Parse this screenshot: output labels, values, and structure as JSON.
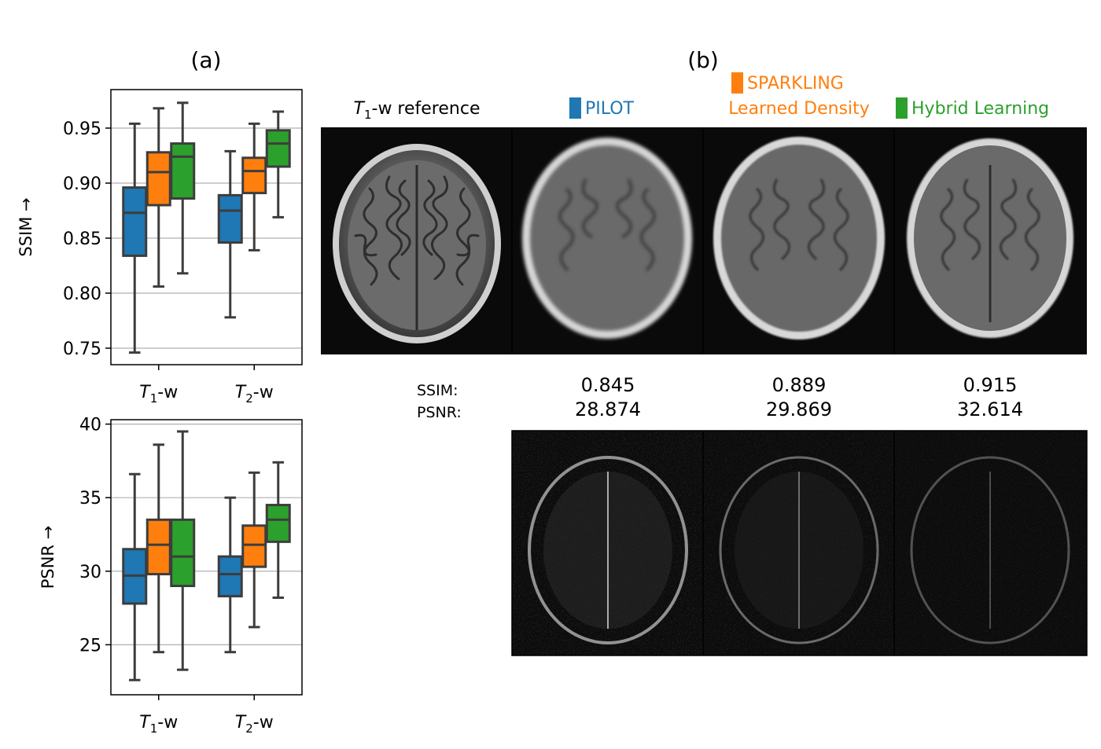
{
  "panel_labels": {
    "a": "(a)",
    "b": "(b)"
  },
  "colors": {
    "pilot": "#1f77b4",
    "sparkling": "#ff7f0e",
    "hybrid": "#2ca02c",
    "whisker": "#3d3d3d",
    "grid": "#b0b0b0"
  },
  "chart_data": [
    {
      "type": "box",
      "ylabel": "SSIM →",
      "ylim": [
        0.735,
        0.985
      ],
      "yticks": [
        "0.75",
        "0.80",
        "0.85",
        "0.90",
        "0.95"
      ],
      "ytick_values": [
        0.75,
        0.8,
        0.85,
        0.9,
        0.95
      ],
      "grid": "horizontal",
      "categories": [
        {
          "pre": "T",
          "sub": "1",
          "post": "-w"
        },
        {
          "pre": "T",
          "sub": "2",
          "post": "-w"
        }
      ],
      "series": [
        {
          "color": "#1f77b4",
          "boxes": [
            {
              "min": 0.746,
              "q1": 0.834,
              "median": 0.873,
              "q3": 0.896,
              "max": 0.954
            },
            {
              "min": 0.778,
              "q1": 0.846,
              "median": 0.875,
              "q3": 0.889,
              "max": 0.929
            }
          ]
        },
        {
          "color": "#ff7f0e",
          "boxes": [
            {
              "min": 0.806,
              "q1": 0.88,
              "median": 0.91,
              "q3": 0.928,
              "max": 0.968
            },
            {
              "min": 0.839,
              "q1": 0.891,
              "median": 0.911,
              "q3": 0.923,
              "max": 0.954
            }
          ]
        },
        {
          "color": "#2ca02c",
          "boxes": [
            {
              "min": 0.818,
              "q1": 0.886,
              "median": 0.924,
              "q3": 0.936,
              "max": 0.973
            },
            {
              "min": 0.869,
              "q1": 0.915,
              "median": 0.936,
              "q3": 0.948,
              "max": 0.965
            }
          ]
        }
      ]
    },
    {
      "type": "box",
      "ylabel": "PSNR →",
      "ylim": [
        21.6,
        40.3
      ],
      "yticks": [
        "25",
        "30",
        "35",
        "40"
      ],
      "ytick_values": [
        25,
        30,
        35,
        40
      ],
      "grid": "horizontal",
      "categories": [
        {
          "pre": "T",
          "sub": "1",
          "post": "-w"
        },
        {
          "pre": "T",
          "sub": "2",
          "post": "-w"
        }
      ],
      "series": [
        {
          "color": "#1f77b4",
          "boxes": [
            {
              "min": 22.6,
              "q1": 27.8,
              "median": 29.7,
              "q3": 31.5,
              "max": 36.6
            },
            {
              "min": 24.5,
              "q1": 28.3,
              "median": 29.8,
              "q3": 31.0,
              "max": 35.0
            }
          ]
        },
        {
          "color": "#ff7f0e",
          "boxes": [
            {
              "min": 24.5,
              "q1": 29.8,
              "median": 31.8,
              "q3": 33.5,
              "max": 38.6
            },
            {
              "min": 26.2,
              "q1": 30.3,
              "median": 31.8,
              "q3": 33.1,
              "max": 36.7
            }
          ]
        },
        {
          "color": "#2ca02c",
          "boxes": [
            {
              "min": 23.3,
              "q1": 29.0,
              "median": 31.0,
              "q3": 33.5,
              "max": 39.5
            },
            {
              "min": 28.2,
              "q1": 32.0,
              "median": 33.5,
              "q3": 34.5,
              "max": 37.4
            }
          ]
        }
      ]
    }
  ],
  "recon": {
    "reference_label": {
      "pre": "T",
      "sub": "1",
      "post": "-w reference"
    },
    "methods": [
      {
        "name": "PILOT",
        "line2": "",
        "color": "#1f77b4",
        "ssim": "0.845",
        "psnr": "28.874"
      },
      {
        "name": "SPARKLING",
        "line2": "Learned Density",
        "color": "#ff7f0e",
        "ssim": "0.889",
        "psnr": "29.869"
      },
      {
        "name": "Hybrid Learning",
        "line2": "",
        "color": "#2ca02c",
        "ssim": "0.915",
        "psnr": "32.614"
      }
    ],
    "metric_labels": {
      "ssim": "SSIM:",
      "psnr": "PSNR:"
    }
  }
}
